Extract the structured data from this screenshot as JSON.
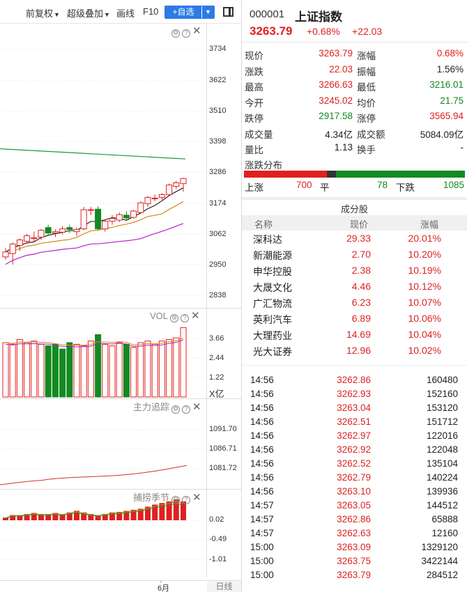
{
  "toolbar": {
    "adjust_label": "前复权",
    "overlay_label": "超级叠加",
    "draw_label": "画线",
    "f10_label": "F10",
    "add_fav_label": "+自选"
  },
  "kline": {
    "price_axis": [
      "3734",
      "3622",
      "3510",
      "3398",
      "3286",
      "3174",
      "3062",
      "2950",
      "2838"
    ],
    "candles": [
      {
        "o": 2978,
        "h": 3010,
        "l": 2968,
        "c": 2996
      },
      {
        "o": 2990,
        "h": 3030,
        "l": 2950,
        "c": 3025
      },
      {
        "o": 3020,
        "h": 3045,
        "l": 3000,
        "c": 3040
      },
      {
        "o": 3035,
        "h": 3062,
        "l": 3028,
        "c": 3055
      },
      {
        "o": 3045,
        "h": 3070,
        "l": 3030,
        "c": 3048
      },
      {
        "o": 3050,
        "h": 3080,
        "l": 3040,
        "c": 3075
      },
      {
        "o": 3085,
        "h": 3095,
        "l": 3055,
        "c": 3065
      },
      {
        "o": 3065,
        "h": 3078,
        "l": 3050,
        "c": 3070
      },
      {
        "o": 3068,
        "h": 3090,
        "l": 3060,
        "c": 3080
      },
      {
        "o": 3085,
        "h": 3095,
        "l": 3065,
        "c": 3078
      },
      {
        "o": 3070,
        "h": 3085,
        "l": 3055,
        "c": 3078
      },
      {
        "o": 3080,
        "h": 3160,
        "l": 3075,
        "c": 3150
      },
      {
        "o": 3150,
        "h": 3160,
        "l": 3130,
        "c": 3150
      },
      {
        "o": 3152,
        "h": 3162,
        "l": 3075,
        "c": 3080
      },
      {
        "o": 3080,
        "h": 3115,
        "l": 3070,
        "c": 3108
      },
      {
        "o": 3108,
        "h": 3130,
        "l": 3095,
        "c": 3118
      },
      {
        "o": 3112,
        "h": 3140,
        "l": 3105,
        "c": 3132
      },
      {
        "o": 3130,
        "h": 3145,
        "l": 3115,
        "c": 3120
      },
      {
        "o": 3122,
        "h": 3150,
        "l": 3118,
        "c": 3145
      },
      {
        "o": 3140,
        "h": 3180,
        "l": 3135,
        "c": 3175
      },
      {
        "o": 3172,
        "h": 3200,
        "l": 3160,
        "c": 3195
      },
      {
        "o": 3190,
        "h": 3205,
        "l": 3180,
        "c": 3192
      },
      {
        "o": 3195,
        "h": 3210,
        "l": 3185,
        "c": 3205
      },
      {
        "o": 3205,
        "h": 3245,
        "l": 3200,
        "c": 3240
      },
      {
        "o": 3235,
        "h": 3255,
        "l": 3225,
        "c": 3248
      },
      {
        "o": 3245,
        "h": 3266.63,
        "l": 3216.01,
        "c": 3263.79
      }
    ],
    "ma_green_start": 3372,
    "ma_green_end": 3335
  },
  "volume": {
    "indicator_label": "VOL",
    "axis": [
      "3.66",
      "2.44",
      "1.22"
    ],
    "unit": "X亿",
    "bars": [
      {
        "v": 3.4,
        "up": true
      },
      {
        "v": 3.3,
        "up": true
      },
      {
        "v": 3.6,
        "up": true
      },
      {
        "v": 3.4,
        "up": true
      },
      {
        "v": 3.5,
        "up": true
      },
      {
        "v": 3.3,
        "up": true
      },
      {
        "v": 3.2,
        "up": false
      },
      {
        "v": 3.3,
        "up": false
      },
      {
        "v": 3.0,
        "up": false
      },
      {
        "v": 3.4,
        "up": false
      },
      {
        "v": 3.3,
        "up": true
      },
      {
        "v": 3.2,
        "up": true
      },
      {
        "v": 3.5,
        "up": true
      },
      {
        "v": 3.9,
        "up": false
      },
      {
        "v": 3.3,
        "up": true
      },
      {
        "v": 3.2,
        "up": true
      },
      {
        "v": 3.4,
        "up": true
      },
      {
        "v": 3.3,
        "up": false
      },
      {
        "v": 3.1,
        "up": true
      },
      {
        "v": 3.4,
        "up": true
      },
      {
        "v": 3.5,
        "up": true
      },
      {
        "v": 3.3,
        "up": true
      },
      {
        "v": 3.5,
        "up": true
      },
      {
        "v": 3.6,
        "up": true
      },
      {
        "v": 3.7,
        "up": true
      },
      {
        "v": 4.34,
        "up": true
      }
    ]
  },
  "main_force": {
    "indicator_label": "主力追踪",
    "axis": [
      "1091.70",
      "1086.71",
      "1081.72"
    ]
  },
  "catch": {
    "indicator_label": "捕捞季节",
    "axis": [
      "0.02",
      "-0.49",
      "-1.01"
    ],
    "bars": [
      0.05,
      0.1,
      0.1,
      0.12,
      0.14,
      0.12,
      0.12,
      0.14,
      0.12,
      0.15,
      0.18,
      0.15,
      0.12,
      0.1,
      0.12,
      0.15,
      0.16,
      0.18,
      0.2,
      0.22,
      0.26,
      0.3,
      0.33,
      0.36,
      0.4,
      0.36
    ]
  },
  "xaxis": {
    "month_label": "6月",
    "period_label": "日线"
  },
  "quote": {
    "code": "000001",
    "name": "上证指数",
    "price": "3263.79",
    "change_pct": "+0.68%",
    "change_amt": "+22.03",
    "rows": [
      {
        "l1": "现价",
        "v1": "3263.79",
        "c1": "red",
        "l2": "涨幅",
        "v2": "0.68%",
        "c2": "red"
      },
      {
        "l1": "涨跌",
        "v1": "22.03",
        "c1": "red",
        "l2": "振幅",
        "v2": "1.56%",
        "c2": "dark"
      },
      {
        "l1": "最高",
        "v1": "3266.63",
        "c1": "red",
        "l2": "最低",
        "v2": "3216.01",
        "c2": "green"
      },
      {
        "l1": "今开",
        "v1": "3245.02",
        "c1": "red",
        "l2": "均价",
        "v2": "21.75",
        "c2": "green"
      },
      {
        "l1": "跌停",
        "v1": "2917.58",
        "c1": "green",
        "l2": "涨停",
        "v2": "3565.94",
        "c2": "red"
      },
      {
        "l1": "成交量",
        "v1": "4.34亿",
        "c1": "dark",
        "l2": "成交额",
        "v2": "5084.09亿",
        "c2": "dark"
      },
      {
        "l1": "量比",
        "v1": "1.13",
        "c1": "dark",
        "l2": "换手",
        "v2": "-",
        "c2": "dark"
      }
    ]
  },
  "distribution": {
    "title": "涨跌分布",
    "up_label": "上涨",
    "up_count": "700",
    "flat_label": "平",
    "flat_count": "78",
    "down_label": "下跌",
    "down_count": "1085",
    "up_value": 700,
    "flat_value": 78,
    "down_value": 1085
  },
  "constituents": {
    "title": "成分股",
    "headers": {
      "name": "名称",
      "price": "现价",
      "pct": "涨幅"
    },
    "rows": [
      {
        "name": "深科达",
        "price": "29.33",
        "pct": "20.01%"
      },
      {
        "name": "新潮能源",
        "price": "2.70",
        "pct": "10.20%"
      },
      {
        "name": "申华控股",
        "price": "2.38",
        "pct": "10.19%"
      },
      {
        "name": "大晟文化",
        "price": "4.46",
        "pct": "10.12%"
      },
      {
        "name": "广汇物流",
        "price": "6.23",
        "pct": "10.07%"
      },
      {
        "name": "英利汽车",
        "price": "6.89",
        "pct": "10.06%"
      },
      {
        "name": "大理药业",
        "price": "14.69",
        "pct": "10.04%"
      },
      {
        "name": "光大证券",
        "price": "12.96",
        "pct": "10.02%"
      }
    ]
  },
  "ticks": [
    {
      "time": "14:56",
      "price": "3262.86",
      "vol": "160480"
    },
    {
      "time": "14:56",
      "price": "3262.93",
      "vol": "152160"
    },
    {
      "time": "14:56",
      "price": "3263.04",
      "vol": "153120"
    },
    {
      "time": "14:56",
      "price": "3262.51",
      "vol": "151712"
    },
    {
      "time": "14:56",
      "price": "3262.97",
      "vol": "122016"
    },
    {
      "time": "14:56",
      "price": "3262.92",
      "vol": "122048"
    },
    {
      "time": "14:56",
      "price": "3262.52",
      "vol": "135104"
    },
    {
      "time": "14:56",
      "price": "3262.79",
      "vol": "140224"
    },
    {
      "time": "14:56",
      "price": "3263.10",
      "vol": "139936"
    },
    {
      "time": "14:57",
      "price": "3263.05",
      "vol": "144512"
    },
    {
      "time": "14:57",
      "price": "3262.86",
      "vol": "65888"
    },
    {
      "time": "14:57",
      "price": "3262.63",
      "vol": "12160"
    },
    {
      "time": "15:00",
      "price": "3263.09",
      "vol": "1329120"
    },
    {
      "time": "15:00",
      "price": "3263.75",
      "vol": "3422144"
    },
    {
      "time": "15:00",
      "price": "3263.79",
      "vol": "284512"
    }
  ],
  "colors": {
    "up": "#e02020",
    "down": "#138a21",
    "accent": "#2d7be5"
  }
}
